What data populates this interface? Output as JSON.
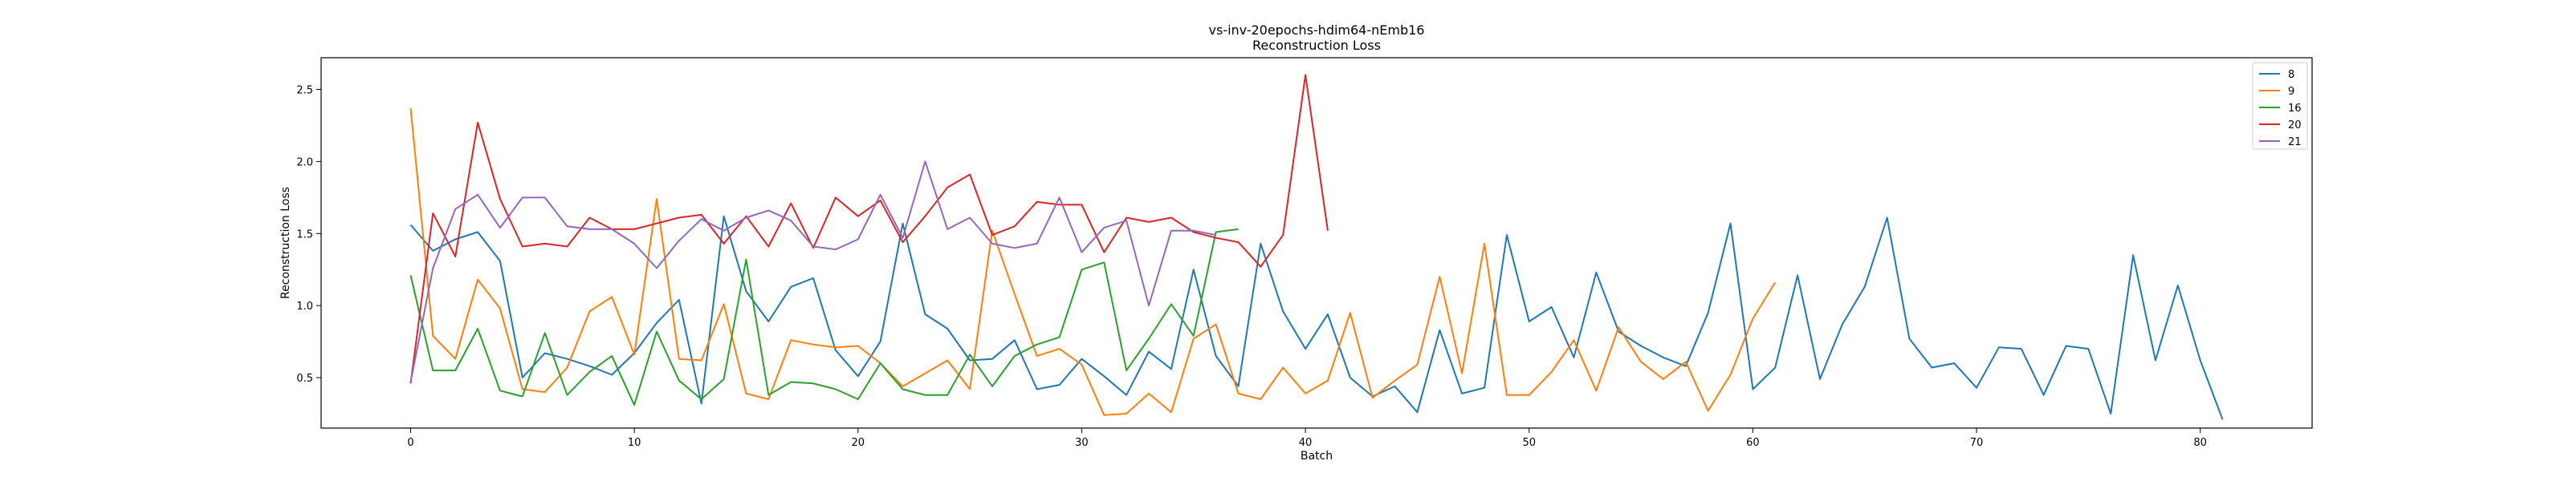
{
  "chart_data": {
    "type": "line",
    "title": "vs-inv-20epochs-hdim64-nEmb16",
    "subtitle": "Reconstruction Loss",
    "xlabel": "Batch",
    "ylabel": "Reconstruction Loss",
    "xlim": [
      -4,
      85
    ],
    "ylim": [
      0.15,
      2.72
    ],
    "xticks": [
      0,
      10,
      20,
      30,
      40,
      50,
      60,
      70,
      80
    ],
    "yticks": [
      0.5,
      1.0,
      1.5,
      2.0,
      2.5
    ],
    "ytick_labels": [
      "0.5",
      "1.0",
      "1.5",
      "2.0",
      "2.5"
    ],
    "grid": false,
    "legend_position": "top-right",
    "series": [
      {
        "name": "8",
        "color": "#1f77b4",
        "values": [
          1.56,
          1.38,
          1.46,
          1.51,
          1.31,
          0.5,
          0.67,
          0.63,
          0.58,
          0.52,
          0.67,
          0.88,
          1.04,
          0.32,
          1.62,
          1.1,
          0.89,
          1.13,
          1.19,
          0.69,
          0.51,
          0.75,
          1.57,
          0.94,
          0.84,
          0.62,
          0.63,
          0.76,
          0.42,
          0.45,
          0.63,
          0.51,
          0.38,
          0.68,
          0.56,
          1.25,
          0.65,
          0.44,
          1.43,
          0.96,
          0.7,
          0.94,
          0.5,
          0.37,
          0.44,
          0.26,
          0.83,
          0.39,
          0.43,
          1.49,
          0.89,
          0.99,
          0.64,
          1.23,
          0.82,
          0.72,
          0.64,
          0.58,
          0.95,
          1.57,
          0.42,
          0.57,
          1.21,
          0.49,
          0.87,
          1.13,
          1.61,
          0.77,
          0.57,
          0.6,
          0.43,
          0.71,
          0.7,
          0.38,
          0.72,
          0.7,
          0.25,
          1.35,
          0.62,
          1.14,
          0.62,
          0.21
        ]
      },
      {
        "name": "9",
        "color": "#ff7f0e",
        "values": [
          2.37,
          0.79,
          0.63,
          1.18,
          0.98,
          0.42,
          0.4,
          0.57,
          0.96,
          1.06,
          0.66,
          1.74,
          0.63,
          0.62,
          1.01,
          0.39,
          0.35,
          0.76,
          0.73,
          0.71,
          0.72,
          0.6,
          0.44,
          0.53,
          0.62,
          0.42,
          1.52,
          1.08,
          0.65,
          0.7,
          0.59,
          0.24,
          0.25,
          0.39,
          0.26,
          0.77,
          0.87,
          0.39,
          0.35,
          0.57,
          0.39,
          0.48,
          0.95,
          0.36,
          0.48,
          0.59,
          1.2,
          0.53,
          1.43,
          0.38,
          0.38,
          0.54,
          0.76,
          0.41,
          0.85,
          0.61,
          0.49,
          0.61,
          0.27,
          0.52,
          0.91,
          1.16
        ]
      },
      {
        "name": "16",
        "color": "#2ca02c",
        "values": [
          1.21,
          0.55,
          0.55,
          0.84,
          0.41,
          0.37,
          0.81,
          0.38,
          0.54,
          0.65,
          0.31,
          0.82,
          0.48,
          0.35,
          0.49,
          1.32,
          0.38,
          0.47,
          0.46,
          0.42,
          0.35,
          0.6,
          0.42,
          0.38,
          0.38,
          0.66,
          0.44,
          0.65,
          0.73,
          0.78,
          1.25,
          1.3,
          0.55,
          0.77,
          1.01,
          0.79,
          1.51,
          1.53
        ]
      },
      {
        "name": "20",
        "color": "#d62728",
        "values": [
          0.46,
          1.64,
          1.34,
          2.27,
          1.74,
          1.41,
          1.43,
          1.41,
          1.61,
          1.53,
          1.53,
          1.57,
          1.61,
          1.63,
          1.43,
          1.62,
          1.41,
          1.71,
          1.4,
          1.75,
          1.62,
          1.73,
          1.44,
          1.62,
          1.82,
          1.91,
          1.49,
          1.55,
          1.72,
          1.7,
          1.7,
          1.37,
          1.61,
          1.58,
          1.61,
          1.51,
          1.47,
          1.44,
          1.27,
          1.49,
          2.6,
          1.52
        ]
      },
      {
        "name": "21",
        "color": "#9467bd",
        "values": [
          0.47,
          1.26,
          1.67,
          1.77,
          1.54,
          1.75,
          1.75,
          1.55,
          1.53,
          1.53,
          1.43,
          1.26,
          1.45,
          1.6,
          1.52,
          1.61,
          1.66,
          1.59,
          1.41,
          1.39,
          1.46,
          1.77,
          1.47,
          2.0,
          1.53,
          1.61,
          1.43,
          1.4,
          1.43,
          1.75,
          1.37,
          1.54,
          1.59,
          1.0,
          1.52,
          1.52,
          1.49
        ]
      }
    ]
  }
}
